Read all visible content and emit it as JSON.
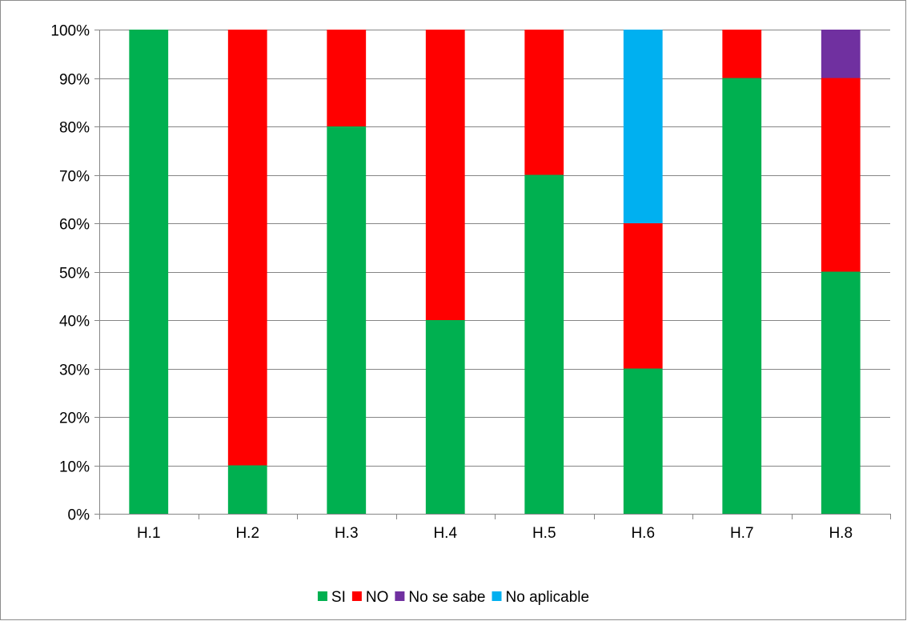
{
  "chart_data": {
    "type": "bar",
    "stacked": true,
    "percent_stacked": true,
    "categories": [
      "H.1",
      "H.2",
      "H.3",
      "H.4",
      "H.5",
      "H.6",
      "H.7",
      "H.8"
    ],
    "series": [
      {
        "name": "SI",
        "color": "#00b050",
        "values": [
          100,
          10,
          80,
          40,
          70,
          30,
          90,
          50
        ]
      },
      {
        "name": "NO",
        "color": "#ff0000",
        "values": [
          0,
          90,
          20,
          60,
          30,
          30,
          10,
          40
        ]
      },
      {
        "name": "No se sabe",
        "color": "#7030a0",
        "values": [
          0,
          0,
          0,
          0,
          0,
          0,
          0,
          10
        ]
      },
      {
        "name": "No aplicable",
        "color": "#00b0f0",
        "values": [
          0,
          0,
          0,
          0,
          0,
          40,
          0,
          0
        ]
      }
    ],
    "ylim": [
      0,
      100
    ],
    "yticks": [
      0,
      10,
      20,
      30,
      40,
      50,
      60,
      70,
      80,
      90,
      100
    ],
    "ytick_labels": [
      "0%",
      "10%",
      "20%",
      "30%",
      "40%",
      "50%",
      "60%",
      "70%",
      "80%",
      "90%",
      "100%"
    ],
    "grid": true,
    "legend": "bottom",
    "title": "",
    "xlabel": "",
    "ylabel": ""
  }
}
